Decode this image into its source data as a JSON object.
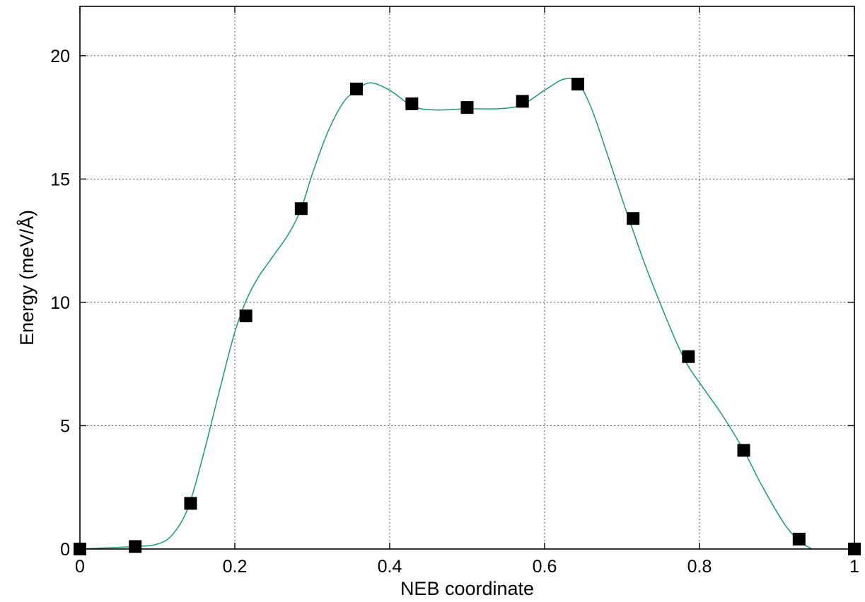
{
  "chart_data": {
    "type": "scatter",
    "xlabel": "NEB coordinate",
    "ylabel": "Energy (meV/Å)",
    "xlim": [
      0,
      1
    ],
    "ylim": [
      0,
      22
    ],
    "grid": true,
    "x_ticks": [
      0,
      0.2,
      0.4,
      0.6,
      0.8,
      1
    ],
    "x_tick_labels": [
      "0",
      "0.2",
      "0.4",
      "0.6",
      "0.8",
      "1"
    ],
    "y_ticks": [
      0,
      5,
      10,
      15,
      20
    ],
    "y_tick_labels": [
      "0",
      "5",
      "10",
      "15",
      "20"
    ],
    "series": [
      {
        "kind": "markers",
        "marker": "filled-square",
        "color": "#000000",
        "x": [
          0,
          0.0714,
          0.1429,
          0.2143,
          0.2857,
          0.3571,
          0.4286,
          0.5,
          0.5714,
          0.6429,
          0.7143,
          0.7857,
          0.8571,
          0.9286,
          1
        ],
        "y": [
          0,
          0.1,
          1.85,
          9.45,
          13.8,
          18.65,
          18.05,
          17.9,
          18.15,
          18.85,
          13.4,
          7.8,
          4.0,
          0.4,
          0
        ]
      },
      {
        "kind": "line",
        "color": "#1a9a7a",
        "x": [
          0,
          0.07,
          0.1,
          0.12,
          0.14,
          0.16,
          0.18,
          0.2,
          0.215,
          0.23,
          0.25,
          0.27,
          0.2857,
          0.3,
          0.32,
          0.34,
          0.3571,
          0.375,
          0.4,
          0.43,
          0.46,
          0.5,
          0.54,
          0.57,
          0.6,
          0.625,
          0.6429,
          0.66,
          0.68,
          0.7,
          0.7143,
          0.73,
          0.75,
          0.77,
          0.7857,
          0.81,
          0.83,
          0.8571,
          0.88,
          0.91,
          0.93,
          0.945
        ],
        "y": [
          0,
          0.1,
          0.2,
          0.6,
          1.7,
          3.9,
          6.4,
          8.8,
          10.1,
          11.0,
          11.9,
          12.8,
          13.8,
          15.2,
          16.9,
          18.1,
          18.6,
          18.9,
          18.6,
          17.95,
          17.8,
          17.85,
          17.85,
          18.0,
          18.6,
          19.05,
          18.9,
          17.9,
          16.1,
          14.2,
          12.9,
          11.5,
          9.9,
          8.4,
          7.4,
          6.3,
          5.4,
          4.0,
          2.6,
          1.0,
          0.3,
          0
        ]
      }
    ]
  }
}
